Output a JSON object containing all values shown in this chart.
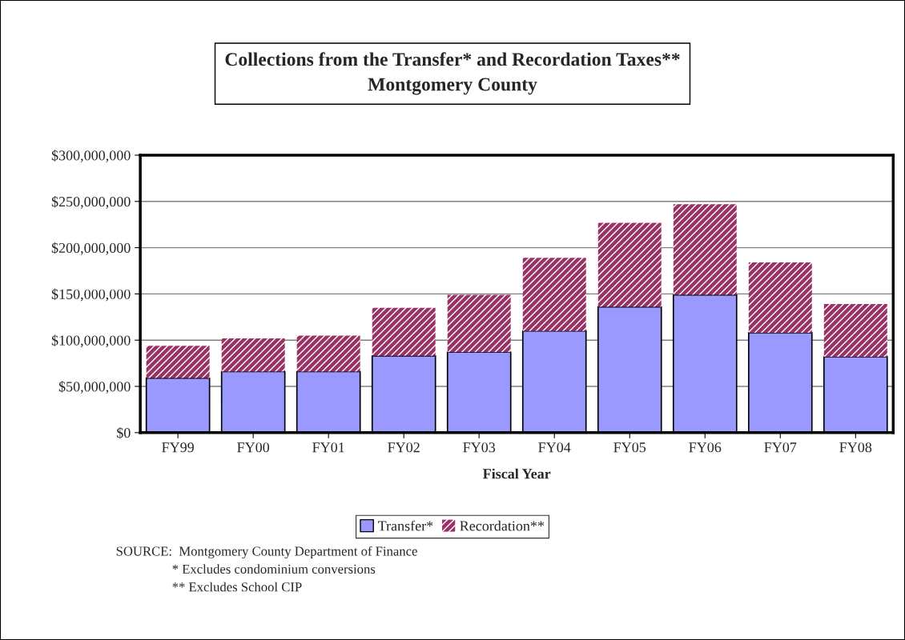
{
  "chart_data": {
    "type": "bar",
    "stacked": true,
    "title": "Collections from the Transfer* and Recordation Taxes**\nMontgomery County",
    "xlabel": "Fiscal Year",
    "categories": [
      "FY99",
      "FY00",
      "FY01",
      "FY02",
      "FY03",
      "FY04",
      "FY05",
      "FY06",
      "FY07",
      "FY08"
    ],
    "series": [
      {
        "name": "Transfer*",
        "color": "#9999ff",
        "values": [
          59000000,
          66000000,
          66000000,
          83000000,
          87000000,
          110000000,
          136000000,
          149000000,
          108000000,
          82000000
        ]
      },
      {
        "name": "Recordation**",
        "color": "#993366",
        "values": [
          35000000,
          36000000,
          39000000,
          52000000,
          62000000,
          79000000,
          91000000,
          98000000,
          76000000,
          57000000
        ]
      }
    ],
    "ylim": [
      0,
      300000000
    ],
    "yticks": [
      {
        "value": 0,
        "label": "$0"
      },
      {
        "value": 50000000,
        "label": "$50,000,000"
      },
      {
        "value": 100000000,
        "label": "$100,000,000"
      },
      {
        "value": 150000000,
        "label": "$150,000,000"
      },
      {
        "value": 200000000,
        "label": "$200,000,000"
      },
      {
        "value": 250000000,
        "label": "$250,000,000"
      },
      {
        "value": 300000000,
        "label": "$300,000,000"
      }
    ],
    "grid": "y",
    "legend": "bottom",
    "annotations": [
      "SOURCE:  Montgomery County Department of Finance",
      "* Excludes condominium conversions",
      "** Excludes School CIP"
    ]
  }
}
